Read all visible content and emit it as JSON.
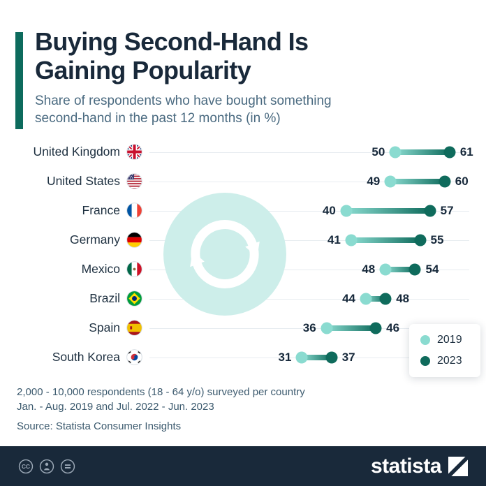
{
  "header": {
    "title_line1": "Buying Second-Hand Is",
    "title_line2": "Gaining Popularity",
    "subtitle_line1": "Share of respondents who have bought something",
    "subtitle_line2": "second-hand in the past 12 months (in %)"
  },
  "chart_data": {
    "type": "dumbbell",
    "title": "Buying Second-Hand Is Gaining Popularity",
    "categories": [
      "United Kingdom",
      "United States",
      "France",
      "Germany",
      "Mexico",
      "Brazil",
      "Spain",
      "South Korea"
    ],
    "flag_icons": [
      "gb",
      "us",
      "fr",
      "de",
      "mx",
      "br",
      "es",
      "kr"
    ],
    "series": [
      {
        "name": "2019",
        "values": [
          50,
          49,
          40,
          41,
          48,
          44,
          36,
          31
        ]
      },
      {
        "name": "2023",
        "values": [
          61,
          60,
          57,
          55,
          54,
          48,
          46,
          37
        ]
      }
    ],
    "xlim": [
      0,
      65
    ],
    "grid": "horizontal-row-lines",
    "legend_position": "bottom-right",
    "colors": {
      "2019": "#8adbd0",
      "2023": "#0f6b5c",
      "accent_bar": "#0d6b5d",
      "navy": "#19293a",
      "center_circle": "#cdeeea"
    }
  },
  "footer": {
    "note_line1": "2,000 - 10,000 respondents (18 - 64 y/o) surveyed per country",
    "note_line2": "Jan. - Aug. 2019 and Jul. 2022 - Jun. 2023",
    "source": "Source: Statista Consumer Insights"
  },
  "bottombar": {
    "brand": "statista"
  }
}
